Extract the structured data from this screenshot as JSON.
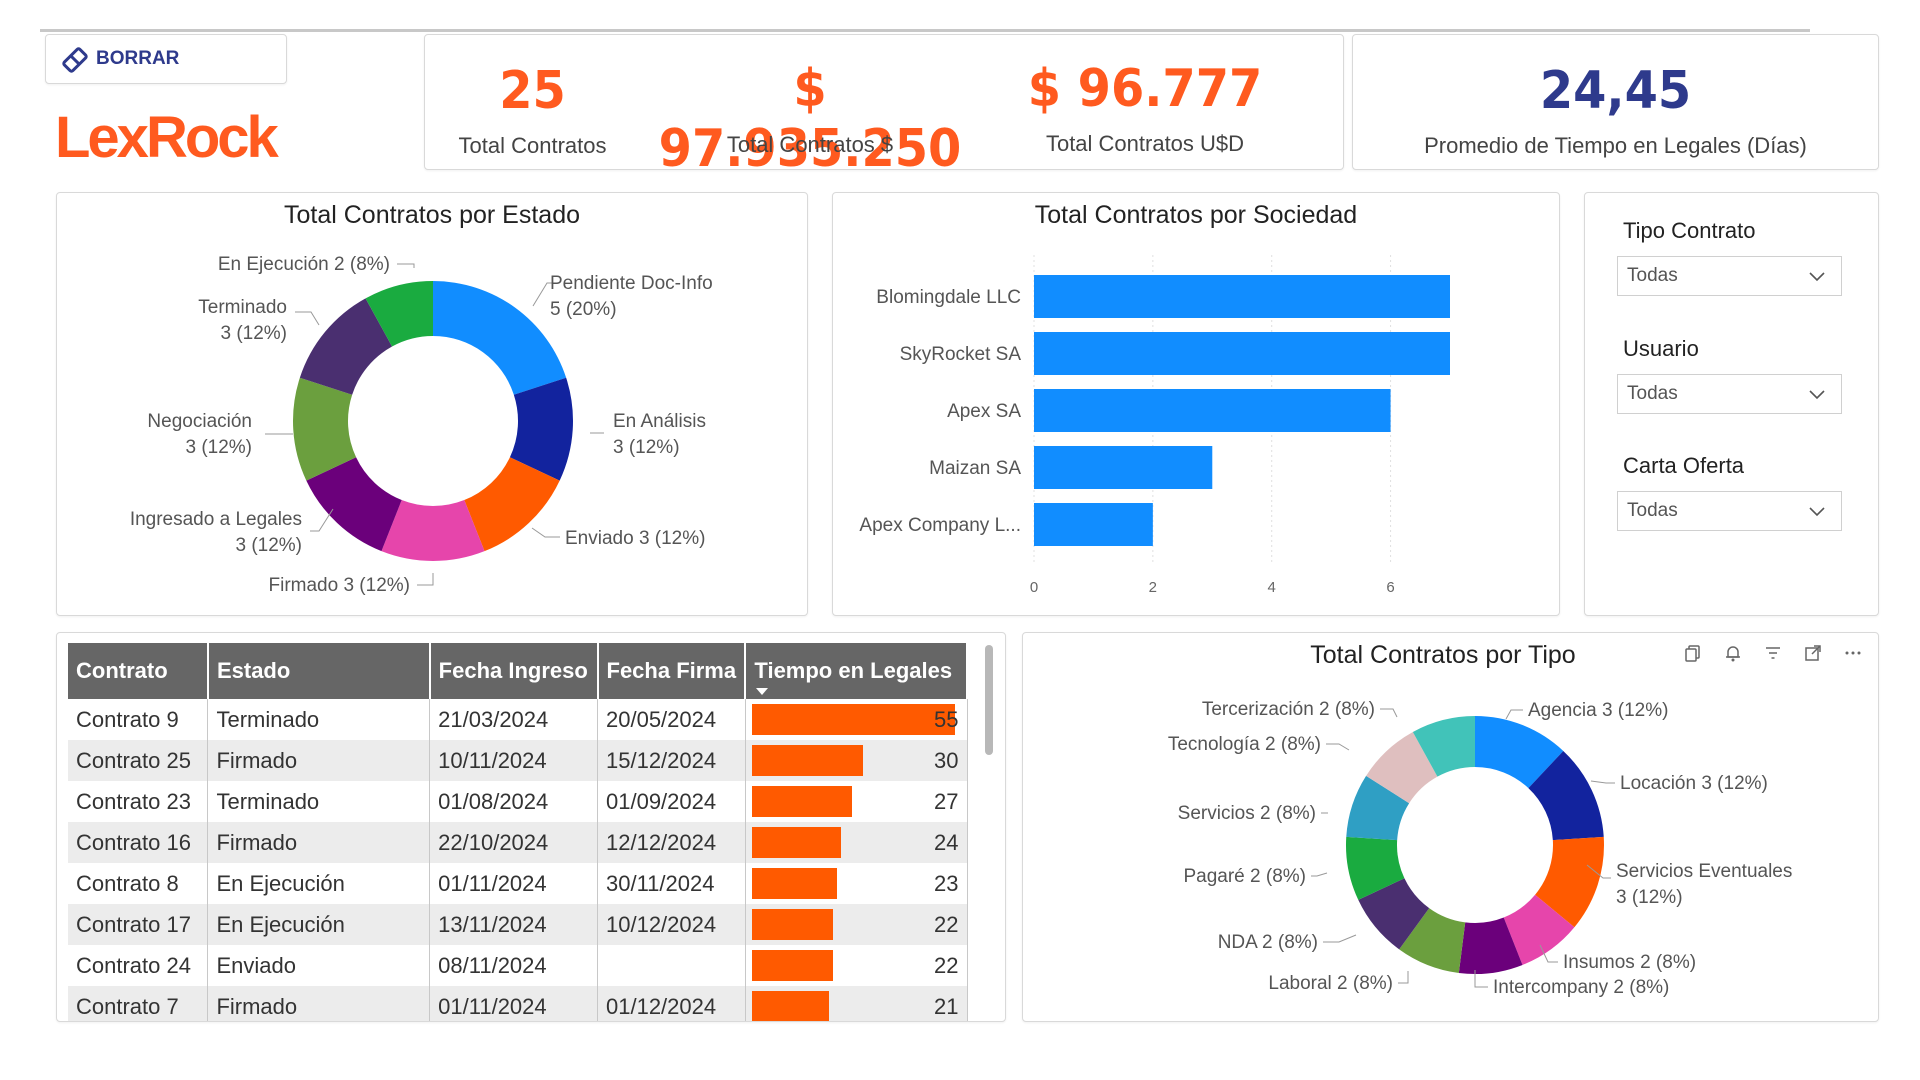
{
  "header": {
    "clear_button": "BORRAR",
    "logo_text": "LexRock"
  },
  "kpis": [
    {
      "value": "25",
      "label": "Total Contratos"
    },
    {
      "value": "$ 97.935.250",
      "label": "Total Contratos $"
    },
    {
      "value": "$ 96.777",
      "label": "Total Contratos U$D"
    },
    {
      "value": "24,45",
      "label": "Promedio de Tiempo en Legales (Días)"
    }
  ],
  "colors": {
    "accent": "#ff5a1f",
    "brand_blue": "#2e3a8c",
    "bar_blue": "#118dff",
    "table_bar": "#ff5a00"
  },
  "estado_chart": {
    "chart_data": {
      "type": "pie",
      "title": "Total Contratos por Estado",
      "slices": [
        {
          "name": "Pendiente Doc-Info",
          "value": 5,
          "label": "5 (20%)",
          "color": "#118dff"
        },
        {
          "name": "En Análisis",
          "value": 3,
          "label": "3 (12%)",
          "color": "#12239e"
        },
        {
          "name": "Enviado",
          "value": 3,
          "label": "3 (12%)",
          "color": "#ff5a00"
        },
        {
          "name": "Firmado",
          "value": 3,
          "label": "3 (12%)",
          "color": "#e645ab"
        },
        {
          "name": "Ingresado a Legales",
          "value": 3,
          "label": "3 (12%)",
          "color": "#6b007b"
        },
        {
          "name": "Negociación",
          "value": 3,
          "label": "3 (12%)",
          "color": "#6b9f3e"
        },
        {
          "name": "Terminado",
          "value": 3,
          "label": "3 (12%)",
          "color": "#4a2f70"
        },
        {
          "name": "En Ejecución",
          "value": 2,
          "label": "2 (8%)",
          "color": "#1aab40"
        }
      ]
    },
    "labels": {
      "pendiente_1": "Pendiente Doc-Info",
      "pendiente_2": "5 (20%)",
      "analisis_1": "En Análisis",
      "analisis_2": "3 (12%)",
      "enviado": "Enviado 3 (12%)",
      "firmado": "Firmado 3 (12%)",
      "ingresado_1": "Ingresado a Legales",
      "ingresado_2": "3 (12%)",
      "negociacion_1": "Negociación",
      "negociacion_2": "3 (12%)",
      "terminado_1": "Terminado",
      "terminado_2": "3 (12%)",
      "ejecucion": "En Ejecución 2 (8%)"
    }
  },
  "sociedad_chart": {
    "chart_data": {
      "type": "bar",
      "title": "Total Contratos por Sociedad",
      "orientation": "horizontal",
      "categories": [
        "Blomingdale LLC",
        "SkyRocket SA",
        "Apex SA",
        "Maizan SA",
        "Apex Company L..."
      ],
      "values": [
        7,
        7,
        6,
        3,
        2
      ],
      "xlim": [
        0,
        7
      ],
      "xticks": [
        "0",
        "2",
        "4",
        "6"
      ],
      "grid": true
    }
  },
  "slicers": [
    {
      "title": "Tipo Contrato",
      "value": "Todas"
    },
    {
      "title": "Usuario",
      "value": "Todas"
    },
    {
      "title": "Carta Oferta",
      "value": "Todas"
    }
  ],
  "table": {
    "columns": [
      "Contrato",
      "Estado",
      "Fecha Ingreso",
      "Fecha Firma",
      "Tiempo en Legales"
    ],
    "max_value": 55,
    "rows": [
      {
        "contrato": "Contrato 9",
        "estado": "Terminado",
        "ingreso": "21/03/2024",
        "firma": "20/05/2024",
        "tiempo": "55",
        "tiempo_num": 55
      },
      {
        "contrato": "Contrato 25",
        "estado": "Firmado",
        "ingreso": "10/11/2024",
        "firma": "15/12/2024",
        "tiempo": "30",
        "tiempo_num": 30
      },
      {
        "contrato": "Contrato 23",
        "estado": "Terminado",
        "ingreso": "01/08/2024",
        "firma": "01/09/2024",
        "tiempo": "27",
        "tiempo_num": 27
      },
      {
        "contrato": "Contrato 16",
        "estado": "Firmado",
        "ingreso": "22/10/2024",
        "firma": "12/12/2024",
        "tiempo": "24",
        "tiempo_num": 24
      },
      {
        "contrato": "Contrato 8",
        "estado": "En Ejecución",
        "ingreso": "01/11/2024",
        "firma": "30/11/2024",
        "tiempo": "23",
        "tiempo_num": 23
      },
      {
        "contrato": "Contrato 17",
        "estado": "En Ejecución",
        "ingreso": "13/11/2024",
        "firma": "10/12/2024",
        "tiempo": "22",
        "tiempo_num": 22
      },
      {
        "contrato": "Contrato 24",
        "estado": "Enviado",
        "ingreso": "08/11/2024",
        "firma": "",
        "tiempo": "22",
        "tiempo_num": 22
      },
      {
        "contrato": "Contrato 7",
        "estado": "Firmado",
        "ingreso": "01/11/2024",
        "firma": "01/12/2024",
        "tiempo": "21",
        "tiempo_num": 21
      }
    ]
  },
  "tipo_chart": {
    "chart_data": {
      "type": "pie",
      "title": "Total Contratos por Tipo",
      "slices": [
        {
          "name": "Agencia",
          "value": 3,
          "label": "3 (12%)",
          "color": "#118dff"
        },
        {
          "name": "Locación",
          "value": 3,
          "label": "3 (12%)",
          "color": "#12239e"
        },
        {
          "name": "Servicios Eventuales",
          "value": 3,
          "label": "3 (12%)",
          "color": "#ff5a00"
        },
        {
          "name": "Insumos",
          "value": 2,
          "label": "2 (8%)",
          "color": "#e645ab"
        },
        {
          "name": "Intercompany",
          "value": 2,
          "label": "2 (8%)",
          "color": "#6b007b"
        },
        {
          "name": "Laboral",
          "value": 2,
          "label": "2 (8%)",
          "color": "#6b9f3e"
        },
        {
          "name": "NDA",
          "value": 2,
          "label": "2 (8%)",
          "color": "#4a2f70"
        },
        {
          "name": "Pagaré",
          "value": 2,
          "label": "2 (8%)",
          "color": "#1aab40"
        },
        {
          "name": "Servicios",
          "value": 2,
          "label": "2 (8%)",
          "color": "#2f9fc4"
        },
        {
          "name": "Tecnología",
          "value": 2,
          "label": "2 (8%)",
          "color": "#dfbfbf"
        },
        {
          "name": "Tercerización",
          "value": 2,
          "label": "2 (8%)",
          "color": "#41c3b9"
        }
      ]
    },
    "labels": {
      "agencia": "Agencia 3 (12%)",
      "locacion": "Locación 3 (12%)",
      "eventuales_1": "Servicios Eventuales",
      "eventuales_2": "3 (12%)",
      "insumos": "Insumos 2 (8%)",
      "intercompany": "Intercompany 2 (8%)",
      "laboral": "Laboral 2 (8%)",
      "nda": "NDA 2 (8%)",
      "pagare": "Pagaré 2 (8%)",
      "servicios": "Servicios 2 (8%)",
      "tecnologia": "Tecnología 2 (8%)",
      "tercerizacion": "Tercerización 2 (8%)"
    },
    "toolbar_icons": [
      "copy-icon",
      "bell-icon",
      "filter-icon",
      "focus-mode-icon",
      "more-options-icon"
    ]
  }
}
